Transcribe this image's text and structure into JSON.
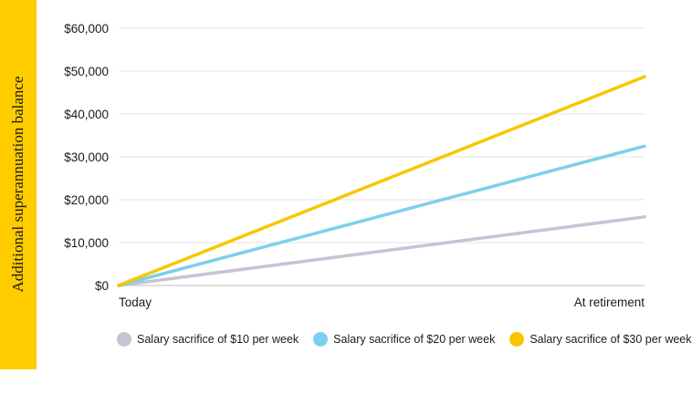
{
  "chart_data": {
    "type": "line",
    "title": "",
    "ylabel": "Additional superannuation balance",
    "xlabel": "",
    "categories": [
      "Today",
      "At retirement"
    ],
    "y_ticks": [
      "$0",
      "$10,000",
      "$20,000",
      "$30,000",
      "$40,000",
      "$50,000",
      "$60,000"
    ],
    "ylim": [
      0,
      60000
    ],
    "grid": true,
    "legend_position": "bottom",
    "series": [
      {
        "name": "Salary sacrifice of $10 per week",
        "values": [
          0,
          16000
        ],
        "color": "#C4C4D4"
      },
      {
        "name": "Salary sacrifice of $20 per week",
        "values": [
          0,
          32500
        ],
        "color": "#7DD0EC"
      },
      {
        "name": "Salary sacrifice of $30 per week",
        "values": [
          0,
          48700
        ],
        "color": "#F8C600"
      }
    ]
  },
  "colors": {
    "accent_band": "#FFCC00",
    "gridline": "#E3E3E3"
  }
}
